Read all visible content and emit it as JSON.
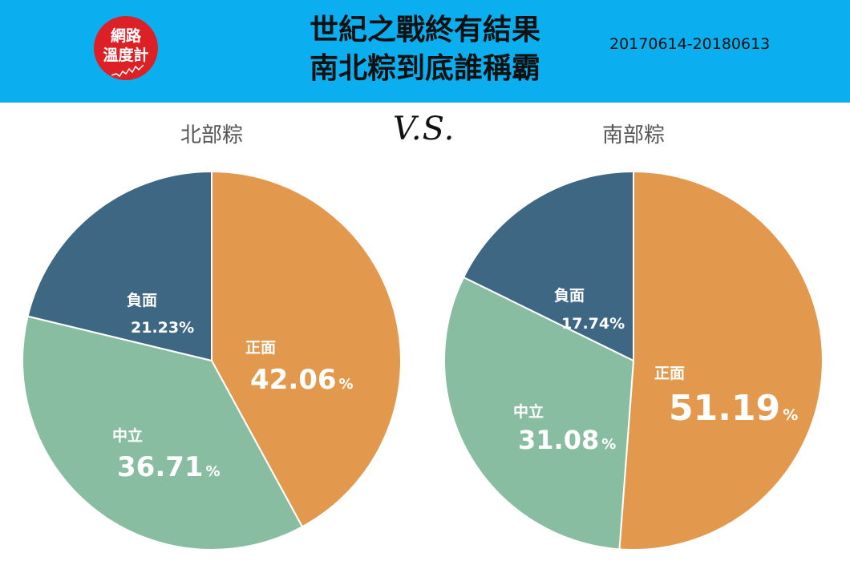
{
  "header": {
    "logo_line1": "網路",
    "logo_line2": "溫度計",
    "title_line1": "世紀之戰終有結果",
    "title_line2": "南北粽到底誰稱霸",
    "date_range": "20170614-20180613",
    "background_color": "#0baff0",
    "logo_color": "#dd1f26"
  },
  "vs_label": "V.S.",
  "chart_data": [
    {
      "type": "pie",
      "title": "北部粽",
      "slices": [
        {
          "label": "正面",
          "value": 42.06,
          "display": "42.06",
          "unit": "%",
          "color": "#e3994d"
        },
        {
          "label": "中立",
          "value": 36.71,
          "display": "36.71",
          "unit": "%",
          "color": "#88bda1"
        },
        {
          "label": "負面",
          "value": 21.23,
          "display": "21.23%",
          "unit": "",
          "color": "#3e6783"
        }
      ]
    },
    {
      "type": "pie",
      "title": "南部粽",
      "slices": [
        {
          "label": "正面",
          "value": 51.19,
          "display": "51.19",
          "unit": "%",
          "color": "#e3994d"
        },
        {
          "label": "中立",
          "value": 31.08,
          "display": "31.08",
          "unit": "%",
          "color": "#88bda1"
        },
        {
          "label": "負面",
          "value": 17.74,
          "display": "17.74%",
          "unit": "",
          "color": "#3e6783"
        }
      ]
    }
  ]
}
